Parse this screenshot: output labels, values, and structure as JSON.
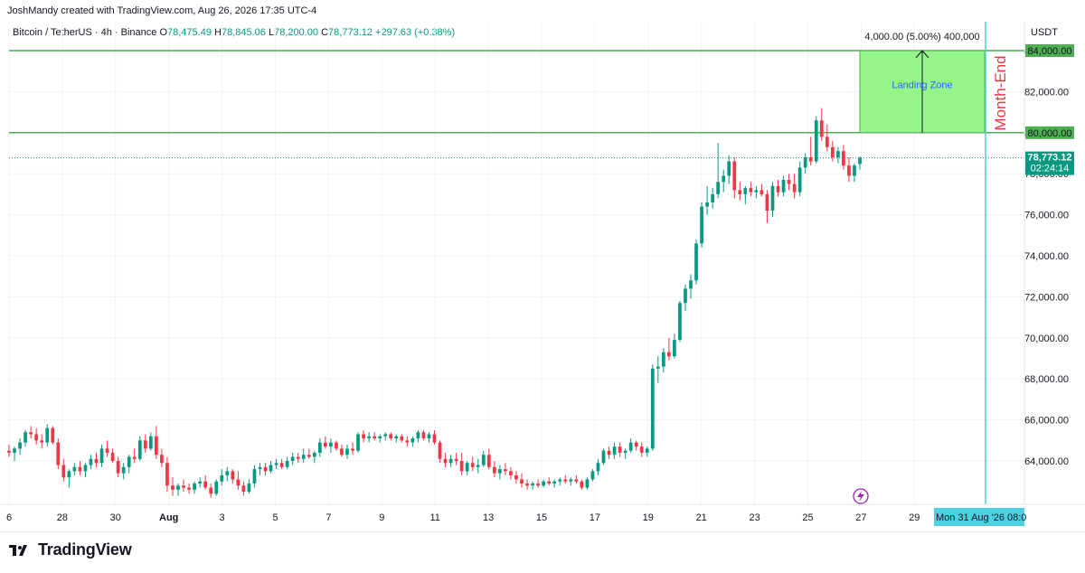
{
  "header": {
    "credit": "JoshMandy created with TradingView.com, Aug 26, 2026 17:35 UTC-4"
  },
  "legend": {
    "symbol": "Bitcoin / TetherUS · 4h · Binance",
    "open_label": "O",
    "open": "78,475.49",
    "high_label": "H",
    "high": "78,845.06",
    "low_label": "L",
    "low": "78,200.00",
    "close_label": "C",
    "close": "78,773.12",
    "change": "+297.63 (+0.38%)"
  },
  "footer": {
    "logo_text": "TradingView"
  },
  "colors": {
    "up": "#089981",
    "down": "#f23645",
    "level_line": "#4caf50",
    "zone_fill": "#96f58a",
    "month_end": "#f23645",
    "date_badge": "#4dd0e1"
  },
  "chart_data": {
    "type": "candlestick",
    "y_axis": {
      "currency": "USDT",
      "ticks": [
        "64,000.00",
        "66,000.00",
        "68,000.00",
        "70,000.00",
        "72,000.00",
        "74,000.00",
        "76,000.00",
        "78,000.00",
        "80,000.00",
        "82,000.00",
        "84,000.00"
      ],
      "range": [
        62000,
        85000
      ]
    },
    "x_axis": {
      "ticks": [
        "6",
        "28",
        "30",
        "Aug",
        "3",
        "5",
        "7",
        "9",
        "11",
        "13",
        "15",
        "17",
        "19",
        "21",
        "23",
        "25",
        "27",
        "29"
      ]
    },
    "last_price": {
      "value": "78,773.12",
      "countdown": "02:24:14"
    },
    "level_labels": {
      "upper": "84,000.00",
      "lower": "80,000.00"
    },
    "annotations": {
      "landing_zone": {
        "label": "Landing Zone",
        "measure": "4,000.00 (5.00%) 400,000",
        "from": 80000,
        "to": 84000
      },
      "month_end": {
        "label": "Month-End",
        "date": "Mon 31 Aug '26",
        "time_cut": "08:0"
      }
    },
    "candles": [
      [
        64500,
        64800,
        64200,
        64400
      ],
      [
        64400,
        64700,
        64000,
        64600
      ],
      [
        64600,
        65100,
        64300,
        64900
      ],
      [
        64900,
        65500,
        64700,
        65400
      ],
      [
        65400,
        65700,
        65100,
        65300
      ],
      [
        65300,
        65600,
        64800,
        65000
      ],
      [
        65000,
        65300,
        64600,
        64900
      ],
      [
        64900,
        65800,
        64700,
        65600
      ],
      [
        65600,
        65700,
        64800,
        64900
      ],
      [
        64900,
        65100,
        63600,
        63800
      ],
      [
        63800,
        64100,
        63000,
        63200
      ],
      [
        63200,
        63600,
        62700,
        63500
      ],
      [
        63500,
        63900,
        63300,
        63700
      ],
      [
        63700,
        64000,
        63300,
        63500
      ],
      [
        63500,
        63900,
        63200,
        63800
      ],
      [
        63800,
        64300,
        63600,
        64100
      ],
      [
        64100,
        64400,
        63700,
        63900
      ],
      [
        63900,
        64800,
        63700,
        64600
      ],
      [
        64600,
        65000,
        64200,
        64400
      ],
      [
        64400,
        64600,
        63900,
        64000
      ],
      [
        64000,
        64200,
        63200,
        63400
      ],
      [
        63400,
        63900,
        63100,
        63700
      ],
      [
        63700,
        64300,
        63400,
        64200
      ],
      [
        64200,
        64600,
        63900,
        64100
      ],
      [
        64100,
        65200,
        64000,
        65000
      ],
      [
        65000,
        65300,
        64400,
        64600
      ],
      [
        64600,
        65400,
        64500,
        65200
      ],
      [
        65200,
        65700,
        64100,
        64300
      ],
      [
        64300,
        64600,
        63700,
        63900
      ],
      [
        63900,
        64200,
        62500,
        62800
      ],
      [
        62800,
        63200,
        62300,
        62600
      ],
      [
        62600,
        62900,
        62300,
        62800
      ],
      [
        62800,
        63100,
        62500,
        62700
      ],
      [
        62700,
        62900,
        62400,
        62600
      ],
      [
        62600,
        63000,
        62400,
        62900
      ],
      [
        62900,
        63200,
        62700,
        63000
      ],
      [
        63000,
        63300,
        62600,
        62700
      ],
      [
        62700,
        62900,
        62200,
        62400
      ],
      [
        62400,
        63100,
        62300,
        63000
      ],
      [
        63000,
        63600,
        62800,
        63300
      ],
      [
        63300,
        63700,
        63000,
        63500
      ],
      [
        63500,
        63600,
        62900,
        63100
      ],
      [
        63100,
        63500,
        62600,
        62800
      ],
      [
        62800,
        63000,
        62300,
        62500
      ],
      [
        62500,
        63100,
        62400,
        62900
      ],
      [
        62900,
        63800,
        62700,
        63600
      ],
      [
        63600,
        63900,
        63300,
        63700
      ],
      [
        63700,
        63900,
        63300,
        63500
      ],
      [
        63500,
        64000,
        63400,
        63800
      ],
      [
        63800,
        64100,
        63600,
        63900
      ],
      [
        63900,
        64100,
        63600,
        63700
      ],
      [
        63700,
        64200,
        63600,
        64000
      ],
      [
        64000,
        64400,
        63800,
        64200
      ],
      [
        64200,
        64400,
        63900,
        64100
      ],
      [
        64100,
        64600,
        63900,
        64300
      ],
      [
        64300,
        64600,
        64100,
        64200
      ],
      [
        64200,
        64500,
        63900,
        64400
      ],
      [
        64400,
        65100,
        64200,
        64900
      ],
      [
        64900,
        65200,
        64600,
        64700
      ],
      [
        64700,
        65100,
        64400,
        64900
      ],
      [
        64900,
        65000,
        64500,
        64600
      ],
      [
        64600,
        64800,
        64200,
        64300
      ],
      [
        64300,
        64800,
        64100,
        64600
      ],
      [
        64600,
        64900,
        64300,
        64500
      ],
      [
        64500,
        65400,
        64400,
        65300
      ],
      [
        65300,
        65500,
        64900,
        65100
      ],
      [
        65100,
        65400,
        64900,
        65200
      ],
      [
        65200,
        65400,
        65000,
        65100
      ],
      [
        65100,
        65300,
        64900,
        65200
      ],
      [
        65200,
        65400,
        65000,
        65300
      ],
      [
        65300,
        65400,
        65000,
        65100
      ],
      [
        65100,
        65300,
        64900,
        65200
      ],
      [
        65200,
        65300,
        64900,
        65000
      ],
      [
        65000,
        65200,
        64700,
        64900
      ],
      [
        64900,
        65200,
        64700,
        65100
      ],
      [
        65100,
        65500,
        64900,
        65400
      ],
      [
        65400,
        65500,
        65000,
        65100
      ],
      [
        65100,
        65400,
        64900,
        65300
      ],
      [
        65300,
        65500,
        64800,
        64900
      ],
      [
        64900,
        65000,
        63900,
        64100
      ],
      [
        64100,
        64400,
        63700,
        63900
      ],
      [
        63900,
        64300,
        63700,
        64100
      ],
      [
        64100,
        64400,
        63800,
        64000
      ],
      [
        64000,
        64400,
        63300,
        63500
      ],
      [
        63500,
        64000,
        63300,
        63900
      ],
      [
        63900,
        64200,
        63500,
        63700
      ],
      [
        63700,
        64100,
        63400,
        63800
      ],
      [
        63800,
        64500,
        63700,
        64300
      ],
      [
        64300,
        64600,
        63600,
        63700
      ],
      [
        63700,
        64000,
        63200,
        63400
      ],
      [
        63400,
        63800,
        63100,
        63600
      ],
      [
        63600,
        63900,
        63300,
        63500
      ],
      [
        63500,
        63700,
        63100,
        63300
      ],
      [
        63300,
        63500,
        62900,
        63100
      ],
      [
        63100,
        63400,
        62700,
        62900
      ],
      [
        62900,
        63100,
        62600,
        62800
      ],
      [
        62800,
        63000,
        62600,
        62900
      ],
      [
        62900,
        63100,
        62700,
        62800
      ],
      [
        62800,
        63100,
        62700,
        63000
      ],
      [
        63000,
        63200,
        62800,
        62900
      ],
      [
        62900,
        63100,
        62700,
        63000
      ],
      [
        63000,
        63200,
        62800,
        63100
      ],
      [
        63100,
        63300,
        62900,
        63000
      ],
      [
        63000,
        63200,
        62800,
        63100
      ],
      [
        63100,
        63300,
        62900,
        63000
      ],
      [
        63000,
        63100,
        62600,
        62700
      ],
      [
        62700,
        63200,
        62600,
        63100
      ],
      [
        63100,
        63600,
        63000,
        63500
      ],
      [
        63500,
        64100,
        63300,
        63900
      ],
      [
        63900,
        64600,
        63800,
        64500
      ],
      [
        64500,
        64700,
        64100,
        64300
      ],
      [
        64300,
        64900,
        64100,
        64700
      ],
      [
        64700,
        64900,
        64200,
        64400
      ],
      [
        64400,
        64600,
        64100,
        64500
      ],
      [
        64500,
        65100,
        64400,
        64900
      ],
      [
        64900,
        65000,
        64500,
        64700
      ],
      [
        64700,
        64900,
        64200,
        64400
      ],
      [
        64400,
        64700,
        64200,
        64600
      ],
      [
        64600,
        68700,
        64500,
        68500
      ],
      [
        68500,
        69100,
        67800,
        68600
      ],
      [
        68600,
        69500,
        68300,
        69300
      ],
      [
        69300,
        70000,
        68900,
        69100
      ],
      [
        69100,
        70200,
        69000,
        69900
      ],
      [
        69900,
        71800,
        69800,
        71700
      ],
      [
        71700,
        72600,
        71300,
        72400
      ],
      [
        72400,
        73100,
        71900,
        72800
      ],
      [
        72800,
        74800,
        72600,
        74600
      ],
      [
        74600,
        76600,
        74400,
        76400
      ],
      [
        76400,
        77400,
        76000,
        76600
      ],
      [
        76600,
        77300,
        76300,
        77000
      ],
      [
        77000,
        79500,
        76800,
        77600
      ],
      [
        77600,
        78200,
        77100,
        77900
      ],
      [
        77900,
        78900,
        77500,
        78600
      ],
      [
        78600,
        78800,
        76800,
        77200
      ],
      [
        77200,
        77600,
        76700,
        77000
      ],
      [
        77000,
        77400,
        76500,
        77300
      ],
      [
        77300,
        77600,
        76900,
        77100
      ],
      [
        77100,
        77400,
        76800,
        77200
      ],
      [
        77200,
        77500,
        76900,
        77000
      ],
      [
        77000,
        77200,
        75600,
        76200
      ],
      [
        76200,
        77600,
        75900,
        77400
      ],
      [
        77400,
        77700,
        76900,
        77100
      ],
      [
        77100,
        77900,
        76900,
        77700
      ],
      [
        77700,
        78000,
        77200,
        77500
      ],
      [
        77500,
        78000,
        76800,
        77100
      ],
      [
        77100,
        78600,
        76900,
        78300
      ],
      [
        78300,
        79000,
        78000,
        78800
      ],
      [
        78800,
        79800,
        78400,
        78600
      ],
      [
        78600,
        80800,
        78500,
        80600
      ],
      [
        80600,
        81200,
        79600,
        79800
      ],
      [
        79800,
        80400,
        79100,
        79300
      ],
      [
        79300,
        79600,
        78600,
        78800
      ],
      [
        78800,
        79300,
        78500,
        79100
      ],
      [
        79100,
        79400,
        78200,
        78400
      ],
      [
        78400,
        78800,
        77600,
        77900
      ],
      [
        77900,
        78500,
        77600,
        78400
      ],
      [
        78475,
        78845,
        78200,
        78773
      ]
    ]
  }
}
